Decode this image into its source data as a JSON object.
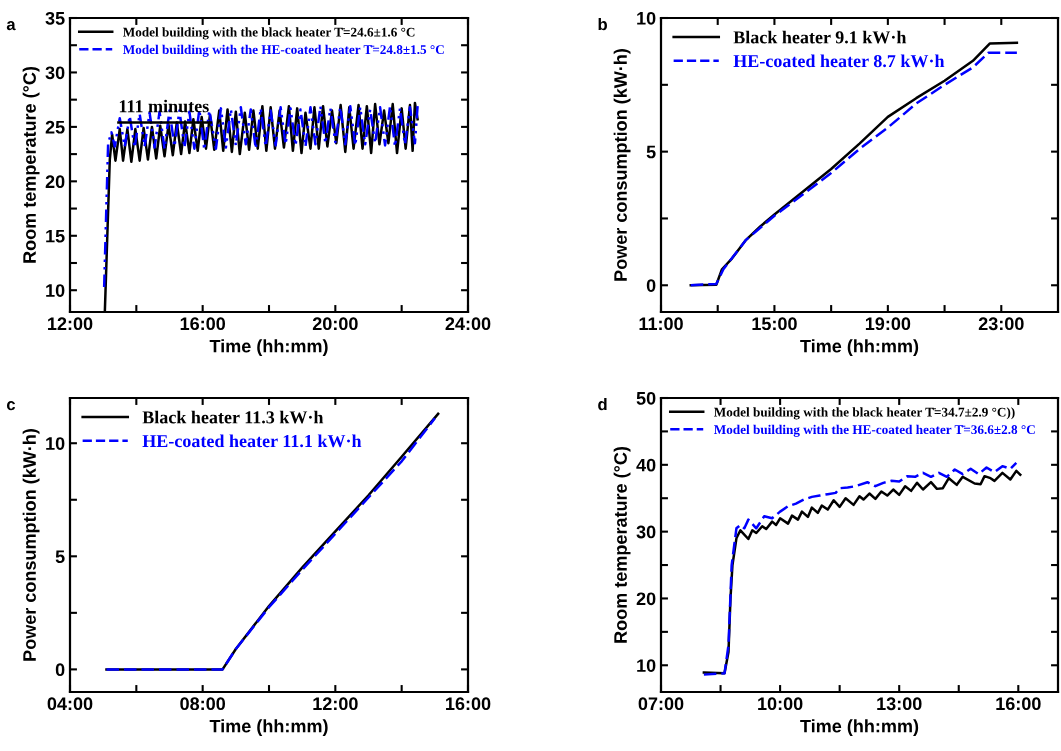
{
  "chart_data": [
    {
      "type": "line",
      "xlabel": "Time (hh:mm)",
      "ylabel": "Room temperature (°C)",
      "legend": "top left",
      "grid": false,
      "xlim": [
        12,
        24
      ],
      "ylim": [
        8,
        35
      ],
      "xticks": [
        {
          "value": 12,
          "label": "12:00"
        },
        {
          "value": 14,
          "label": null
        },
        {
          "value": 16,
          "label": "16:00"
        },
        {
          "value": 18,
          "label": null
        },
        {
          "value": 20,
          "label": "20:00"
        },
        {
          "value": 22,
          "label": null
        },
        {
          "value": 24,
          "label": "24:00"
        }
      ],
      "yticks": [
        10,
        {
          "value": 12.5,
          "label": null
        },
        15,
        {
          "value": 17.5,
          "label": null
        },
        20,
        {
          "value": 22.5,
          "label": null
        },
        25,
        {
          "value": 27.5,
          "label": null
        },
        30,
        {
          "value": 32.5,
          "label": null
        },
        35
      ],
      "annotations": [
        "a",
        {
          "text": "111 minutes",
          "x": 13.46,
          "y": 25.4
        }
      ],
      "series": [
        {
          "name": "Model building with the black heater T̄=24.6±1.6 °C",
          "color": "#000000",
          "line_style": "solid",
          "x": [
            13.05,
            13.2,
            13.27,
            13.37,
            13.5,
            13.6,
            13.73,
            13.85,
            13.97,
            14.1,
            14.22,
            14.35,
            14.47,
            14.6,
            14.72,
            14.85,
            14.97,
            15.1,
            15.22,
            15.35,
            15.47,
            15.6,
            15.72,
            15.85,
            15.97,
            16.1,
            16.22,
            16.35,
            16.5,
            16.62,
            16.75,
            16.88,
            17.0,
            17.12,
            17.27,
            17.4,
            17.53,
            17.66,
            17.8,
            17.92,
            18.05,
            18.18,
            18.32,
            18.45,
            18.6,
            18.72,
            18.85,
            18.98,
            19.1,
            19.25,
            19.37,
            19.5,
            19.63,
            19.76,
            19.9,
            20.03,
            20.16,
            20.3,
            20.42,
            20.55,
            20.7,
            20.82,
            20.95,
            21.08,
            21.2,
            21.33,
            21.47,
            21.6,
            21.73,
            21.86,
            22.0,
            22.12,
            22.25,
            22.33,
            22.4,
            22.48
          ],
          "values": [
            8.0,
            22.0,
            24.3,
            21.9,
            24.8,
            21.9,
            24.8,
            21.8,
            24.8,
            21.9,
            24.9,
            22.0,
            25.0,
            22.1,
            25.1,
            22.3,
            25.2,
            22.4,
            25.4,
            22.5,
            25.5,
            22.6,
            25.7,
            22.8,
            25.9,
            23.0,
            26.1,
            22.9,
            26.5,
            22.8,
            26.6,
            22.7,
            26.4,
            22.5,
            26.3,
            22.9,
            26.5,
            23.0,
            26.9,
            22.8,
            26.8,
            23.0,
            26.5,
            23.1,
            26.9,
            22.8,
            26.7,
            22.6,
            26.3,
            23.0,
            26.8,
            23.0,
            26.9,
            23.2,
            26.5,
            23.5,
            27.0,
            22.7,
            26.8,
            23.0,
            27.0,
            23.0,
            26.9,
            22.6,
            27.1,
            23.4,
            26.5,
            23.5,
            27.1,
            22.6,
            26.7,
            23.0,
            27.0,
            22.8,
            27.2,
            25.7
          ]
        },
        {
          "name": "Model building with the HE-coated heater T̄=24.8±1.5 °C",
          "color": "#0000ff",
          "line_style": "dashdot",
          "x": [
            13.03,
            13.15,
            13.25,
            13.35,
            13.5,
            13.65,
            13.8,
            13.95,
            14.1,
            14.25,
            14.4,
            14.55,
            14.7,
            14.85,
            15.0,
            15.15,
            15.3,
            15.45,
            15.6,
            15.75,
            15.9,
            16.05,
            16.2,
            16.4,
            16.55,
            16.7,
            16.85,
            17.0,
            17.15,
            17.3,
            17.45,
            17.6,
            17.75,
            17.9,
            18.05,
            18.2,
            18.35,
            18.5,
            18.65,
            18.8,
            18.95,
            19.1,
            19.25,
            19.4,
            19.55,
            19.7,
            19.85,
            20.0,
            20.15,
            20.3,
            20.45,
            20.6,
            20.75,
            20.9,
            21.05,
            21.2,
            21.35,
            21.5,
            21.65,
            21.8,
            21.95,
            22.1,
            22.25,
            22.4,
            22.48
          ],
          "values": [
            10.3,
            23.5,
            24.5,
            23.2,
            25.8,
            23.2,
            26.0,
            23.1,
            26.2,
            23.2,
            26.3,
            23.1,
            26.4,
            23.0,
            26.5,
            23.2,
            26.5,
            23.1,
            26.4,
            23.0,
            26.6,
            22.9,
            26.5,
            23.0,
            26.7,
            23.1,
            26.6,
            23.3,
            26.8,
            23.4,
            26.6,
            23.0,
            26.7,
            23.2,
            26.5,
            23.3,
            26.8,
            23.4,
            26.7,
            23.3,
            26.6,
            23.2,
            26.8,
            23.4,
            26.9,
            23.5,
            26.7,
            23.6,
            26.8,
            23.4,
            26.9,
            23.3,
            26.8,
            23.4,
            26.6,
            23.5,
            26.8,
            23.3,
            26.9,
            23.2,
            26.7,
            23.4,
            26.8,
            23.5,
            26.9
          ]
        },
        {
          "color": "#000000",
          "line_style": "solid",
          "x": [
            13.46,
            16.25
          ],
          "values": [
            25.4,
            25.4
          ]
        }
      ]
    },
    {
      "type": "line",
      "xlabel": "Time (hh:mm)",
      "ylabel": "Power consumption (kW·h)",
      "legend": "top left",
      "grid": false,
      "xlim": [
        11,
        25
      ],
      "ylim": [
        -1,
        10
      ],
      "xticks": [
        {
          "value": 11,
          "label": "11:00"
        },
        {
          "value": 13,
          "label": null
        },
        {
          "value": 15,
          "label": "15:00"
        },
        {
          "value": 17,
          "label": null
        },
        {
          "value": 19,
          "label": "19:00"
        },
        {
          "value": 21,
          "label": null
        },
        {
          "value": 23,
          "label": "23:00"
        }
      ],
      "yticks": [
        0,
        {
          "value": 2.5,
          "label": null
        },
        5,
        {
          "value": 7.5,
          "label": null
        },
        10
      ],
      "annotations": [
        "b"
      ],
      "series": [
        {
          "name": "Black heater 9.1 kW·h",
          "color": "#000000",
          "line_style": "solid",
          "x": [
            12.05,
            12.95,
            13.15,
            13.5,
            14.0,
            14.5,
            15.0,
            16.0,
            17.0,
            18.0,
            19.0,
            20.0,
            21.0,
            22.0,
            22.6,
            23.55
          ],
          "values": [
            0,
            0.02,
            0.6,
            1.0,
            1.7,
            2.2,
            2.65,
            3.5,
            4.35,
            5.3,
            6.3,
            7.0,
            7.65,
            8.4,
            9.05,
            9.07
          ]
        },
        {
          "name": "HE-coated heater 8.7 kW·h",
          "color": "#0000ff",
          "line_style": "dashed",
          "x": [
            12.05,
            12.95,
            13.2,
            14.0,
            15.0,
            16.0,
            17.0,
            18.0,
            19.0,
            20.0,
            21.0,
            22.0,
            22.55,
            23.55
          ],
          "values": [
            0,
            0.05,
            0.6,
            1.7,
            2.6,
            3.4,
            4.2,
            5.1,
            5.9,
            6.8,
            7.5,
            8.15,
            8.7,
            8.7
          ]
        }
      ]
    },
    {
      "type": "line",
      "xlabel": "Time (hh:mm)",
      "ylabel": "Power consumption (kW·h)",
      "legend": "top left",
      "grid": false,
      "xlim": [
        4,
        16
      ],
      "ylim": [
        -1,
        12
      ],
      "xticks": [
        {
          "value": 4,
          "label": "04:00"
        },
        {
          "value": 6,
          "label": null
        },
        {
          "value": 8,
          "label": "08:00"
        },
        {
          "value": 10,
          "label": null
        },
        {
          "value": 12,
          "label": "12:00"
        },
        {
          "value": 14,
          "label": null
        },
        {
          "value": 16,
          "label": "16:00"
        }
      ],
      "yticks": [
        0,
        {
          "value": 2.5,
          "label": null
        },
        5,
        {
          "value": 7.5,
          "label": null
        },
        10
      ],
      "annotations": [
        "c"
      ],
      "series": [
        {
          "name": "Black heater 11.3 kW·h",
          "color": "#000000",
          "line_style": "solid",
          "x": [
            5.1,
            8.6,
            9.0,
            10.0,
            11.0,
            12.0,
            13.0,
            14.0,
            15.1
          ],
          "values": [
            0,
            0,
            0.9,
            2.8,
            4.5,
            6.1,
            7.7,
            9.4,
            11.3
          ]
        },
        {
          "name": "HE-coated heater 11.1 kW·h",
          "color": "#0000ff",
          "line_style": "dashed",
          "x": [
            5.1,
            8.6,
            9.0,
            10.0,
            11.0,
            12.0,
            13.0,
            14.0,
            15.0
          ],
          "values": [
            0,
            0,
            0.9,
            2.75,
            4.4,
            6.0,
            7.6,
            9.2,
            11.1
          ]
        }
      ]
    },
    {
      "type": "line",
      "xlabel": "Time (hh:mm)",
      "ylabel": "Room temperature (°C)",
      "legend": "top left",
      "grid": false,
      "xlim": [
        7,
        17
      ],
      "ylim": [
        6,
        50
      ],
      "xticks": [
        {
          "value": 7,
          "label": "07:00"
        },
        {
          "value": 8.5,
          "label": null
        },
        {
          "value": 10,
          "label": "10:00"
        },
        {
          "value": 11.5,
          "label": null
        },
        {
          "value": 13,
          "label": "13:00"
        },
        {
          "value": 14.5,
          "label": null
        },
        {
          "value": 16,
          "label": "16:00"
        }
      ],
      "yticks": [
        10,
        {
          "value": 15,
          "label": null
        },
        20,
        {
          "value": 25,
          "label": null
        },
        30,
        {
          "value": 35,
          "label": null
        },
        40,
        {
          "value": 45,
          "label": null
        },
        50
      ],
      "annotations": [
        "d"
      ],
      "series": [
        {
          "name": "Model building with the black heater T̄=34.7±2.9 °C))",
          "color": "#000000",
          "line_style": "solid",
          "x": [
            8.08,
            8.6,
            8.7,
            8.75,
            8.8,
            8.9,
            9.0,
            9.2,
            9.3,
            9.4,
            9.55,
            9.65,
            9.8,
            9.9,
            10.0,
            10.2,
            10.3,
            10.45,
            10.55,
            10.7,
            10.8,
            10.95,
            11.05,
            11.2,
            11.35,
            11.5,
            11.65,
            11.85,
            12.0,
            12.1,
            12.25,
            12.4,
            12.55,
            12.7,
            12.85,
            13.0,
            13.15,
            13.3,
            13.45,
            13.6,
            13.8,
            13.95,
            14.1,
            14.25,
            14.45,
            14.6,
            14.9,
            15.05,
            15.15,
            15.3,
            15.4,
            15.6,
            15.8,
            15.95,
            16.05
          ],
          "values": [
            8.9,
            8.8,
            12,
            20,
            25,
            29.0,
            30.2,
            28.9,
            30.2,
            29.8,
            30.8,
            30.4,
            31.5,
            31.0,
            32.0,
            31.2,
            32.4,
            31.8,
            33.0,
            32.2,
            33.6,
            32.8,
            33.9,
            33.3,
            34.7,
            33.7,
            35.0,
            34.0,
            35.3,
            34.8,
            35.7,
            34.9,
            36.0,
            35.4,
            36.3,
            35.5,
            36.8,
            36.1,
            37.3,
            36.3,
            37.4,
            36.4,
            36.5,
            38.0,
            37.0,
            38.2,
            37.2,
            37.1,
            38.3,
            38.0,
            37.6,
            38.8,
            37.8,
            39.1,
            38.5
          ]
        },
        {
          "name": "Model building with the HE-coated heater T̄=36.6±2.8 °C",
          "color": "#0000ff",
          "line_style": "dashed",
          "x": [
            8.08,
            8.6,
            8.7,
            8.78,
            8.9,
            9.0,
            9.1,
            9.2,
            9.4,
            9.6,
            9.8,
            10.0,
            10.2,
            10.4,
            10.6,
            10.8,
            11.0,
            11.2,
            11.4,
            11.5,
            11.7,
            11.9,
            12.2,
            12.4,
            12.6,
            12.8,
            13.0,
            13.2,
            13.4,
            13.6,
            13.8,
            14.0,
            14.2,
            14.4,
            14.6,
            14.8,
            15.0,
            15.2,
            15.4,
            15.6,
            15.8,
            15.95
          ],
          "values": [
            8.6,
            8.8,
            13,
            25,
            30.5,
            31.0,
            30.5,
            31.8,
            30.5,
            32.3,
            32.0,
            33.0,
            33.8,
            34.2,
            34.8,
            35.2,
            35.4,
            35.6,
            35.8,
            36.5,
            36.6,
            36.8,
            37.4,
            36.8,
            37.3,
            37.6,
            37.5,
            38.3,
            38.2,
            38.8,
            38.2,
            38.8,
            38.2,
            39.3,
            38.6,
            39.4,
            38.6,
            39.6,
            38.9,
            39.8,
            39.4,
            40.3
          ]
        }
      ]
    }
  ]
}
